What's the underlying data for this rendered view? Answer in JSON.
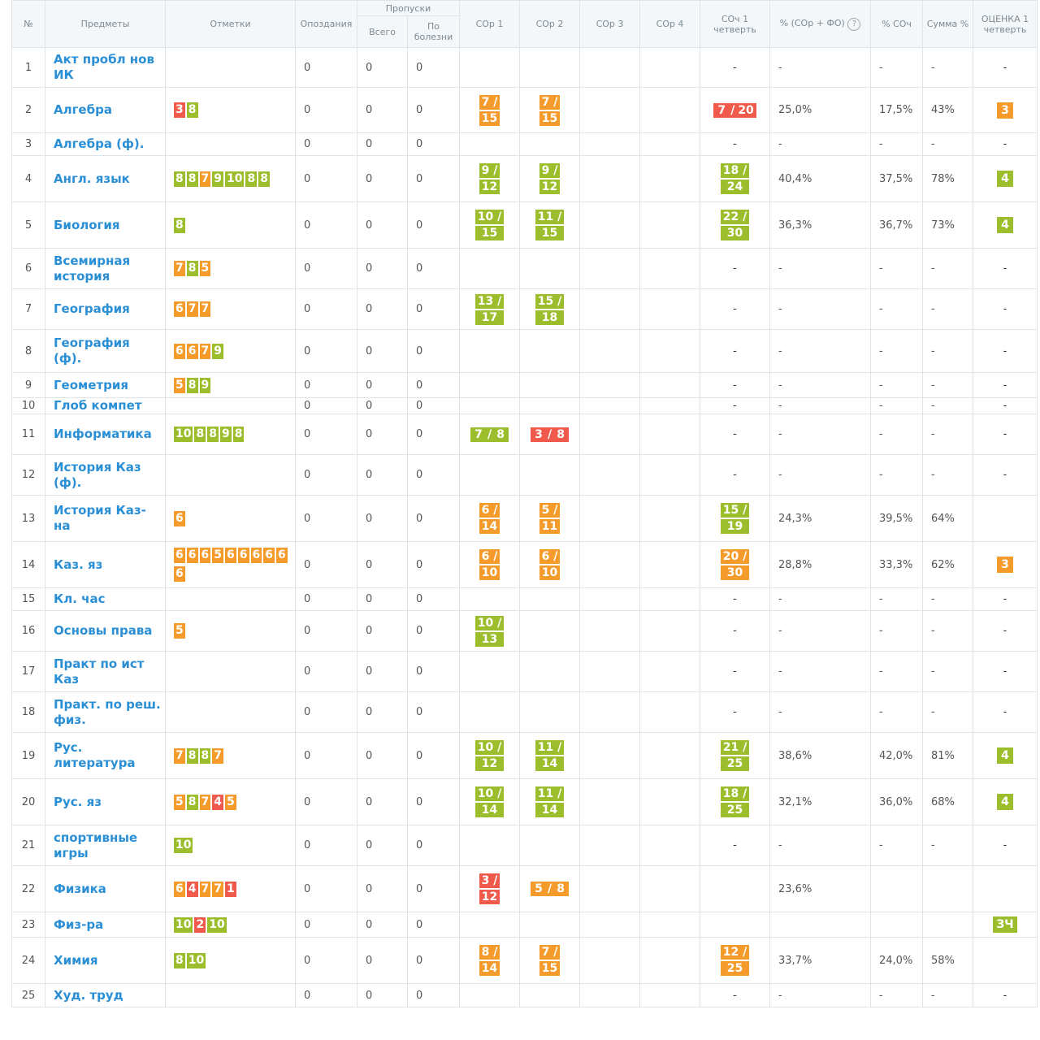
{
  "headers": {
    "num": "№",
    "subject": "Предметы",
    "marks": "Отметки",
    "late": "Опоздания",
    "absences": "Пропуски",
    "abs_total": "Всего",
    "abs_sick": "По болезни",
    "sor1": "СОр 1",
    "sor2": "СОр 2",
    "sor3": "СОр 3",
    "sor4": "СОр 4",
    "soch": "СОч 1 четверть",
    "pct_sor_fo": "% (СОр + ФО)",
    "pct_soch": "% СОч",
    "sum_pct": "Сумма %",
    "grade": "ОЦЕНКА 1 четверть"
  },
  "icons": {
    "help": "question-circle-icon"
  },
  "colors": {
    "green": "#9dbe2c",
    "orange": "#f49b2b",
    "red": "#ef5a4d",
    "link": "#2b8fd6"
  },
  "rows": [
    {
      "num": "1",
      "subject": "Акт пробл нов ИК",
      "marks": [],
      "late": "0",
      "total": "0",
      "sick": "0",
      "sor1": null,
      "sor2": null,
      "soch": "-",
      "pct_sor_fo": "-",
      "pct_soch": "-",
      "sum": "-",
      "grade": "-"
    },
    {
      "num": "2",
      "subject": "Алгебра",
      "marks": [
        {
          "v": "3",
          "c": "red"
        },
        {
          "v": "8",
          "c": "green"
        }
      ],
      "late": "0",
      "total": "0",
      "sick": "0",
      "sor1": {
        "a": "7",
        "b": "15",
        "c": "orange"
      },
      "sor2": {
        "a": "7",
        "b": "15",
        "c": "orange"
      },
      "soch": {
        "a": "7",
        "b": "20",
        "c": "red",
        "inline": true
      },
      "pct_sor_fo": "25,0%",
      "pct_soch": "17,5%",
      "sum": "43%",
      "grade": {
        "v": "3",
        "c": "orange"
      }
    },
    {
      "num": "3",
      "subject": "Алгебра (ф).",
      "marks": [],
      "late": "0",
      "total": "0",
      "sick": "0",
      "sor1": null,
      "sor2": null,
      "soch": "-",
      "pct_sor_fo": "-",
      "pct_soch": "-",
      "sum": "-",
      "grade": "-"
    },
    {
      "num": "4",
      "subject": "Англ. язык",
      "marks": [
        {
          "v": "8",
          "c": "green"
        },
        {
          "v": "8",
          "c": "green"
        },
        {
          "v": "7",
          "c": "orange"
        },
        {
          "v": "9",
          "c": "green"
        },
        {
          "v": "10",
          "c": "green"
        },
        {
          "v": "8",
          "c": "green"
        },
        {
          "v": "8",
          "c": "green"
        }
      ],
      "late": "0",
      "total": "0",
      "sick": "0",
      "sor1": {
        "a": "9",
        "b": "12",
        "c": "green"
      },
      "sor2": {
        "a": "9",
        "b": "12",
        "c": "green"
      },
      "soch": {
        "a": "18",
        "b": "24",
        "c": "green"
      },
      "pct_sor_fo": "40,4%",
      "pct_soch": "37,5%",
      "sum": "78%",
      "grade": {
        "v": "4",
        "c": "green"
      }
    },
    {
      "num": "5",
      "subject": "Биология",
      "marks": [
        {
          "v": "8",
          "c": "green"
        }
      ],
      "late": "0",
      "total": "0",
      "sick": "0",
      "sor1": {
        "a": "10",
        "b": "15",
        "c": "green"
      },
      "sor2": {
        "a": "11",
        "b": "15",
        "c": "green"
      },
      "soch": {
        "a": "22",
        "b": "30",
        "c": "green"
      },
      "pct_sor_fo": "36,3%",
      "pct_soch": "36,7%",
      "sum": "73%",
      "grade": {
        "v": "4",
        "c": "green"
      }
    },
    {
      "num": "6",
      "subject": "Всемирная история",
      "marks": [
        {
          "v": "7",
          "c": "orange"
        },
        {
          "v": "8",
          "c": "green"
        },
        {
          "v": "5",
          "c": "orange"
        }
      ],
      "late": "0",
      "total": "0",
      "sick": "0",
      "sor1": null,
      "sor2": null,
      "soch": "-",
      "pct_sor_fo": "-",
      "pct_soch": "-",
      "sum": "-",
      "grade": "-"
    },
    {
      "num": "7",
      "subject": "География",
      "marks": [
        {
          "v": "6",
          "c": "orange"
        },
        {
          "v": "7",
          "c": "orange"
        },
        {
          "v": "7",
          "c": "orange"
        }
      ],
      "late": "0",
      "total": "0",
      "sick": "0",
      "sor1": {
        "a": "13",
        "b": "17",
        "c": "green"
      },
      "sor2": {
        "a": "15",
        "b": "18",
        "c": "green"
      },
      "soch": "-",
      "pct_sor_fo": "-",
      "pct_soch": "-",
      "sum": "-",
      "grade": "-"
    },
    {
      "num": "8",
      "subject": "География (ф).",
      "marks": [
        {
          "v": "6",
          "c": "orange"
        },
        {
          "v": "6",
          "c": "orange"
        },
        {
          "v": "7",
          "c": "orange"
        },
        {
          "v": "9",
          "c": "green"
        }
      ],
      "late": "0",
      "total": "0",
      "sick": "0",
      "sor1": null,
      "sor2": null,
      "soch": "-",
      "pct_sor_fo": "-",
      "pct_soch": "-",
      "sum": "-",
      "grade": "-"
    },
    {
      "num": "9",
      "subject": "Геометрия",
      "marks": [
        {
          "v": "5",
          "c": "orange"
        },
        {
          "v": "8",
          "c": "green"
        },
        {
          "v": "9",
          "c": "green"
        }
      ],
      "late": "0",
      "total": "0",
      "sick": "0",
      "sor1": null,
      "sor2": null,
      "soch": "-",
      "pct_sor_fo": "-",
      "pct_soch": "-",
      "sum": "-",
      "grade": "-"
    },
    {
      "num": "10",
      "subject": "Глоб компет",
      "marks": [],
      "late": "0",
      "total": "0",
      "sick": "0",
      "sor1": null,
      "sor2": null,
      "soch": "-",
      "pct_sor_fo": "-",
      "pct_soch": "-",
      "sum": "-",
      "grade": "-"
    },
    {
      "num": "11",
      "subject": "Информатика",
      "marks": [
        {
          "v": "10",
          "c": "green"
        },
        {
          "v": "8",
          "c": "green"
        },
        {
          "v": "8",
          "c": "green"
        },
        {
          "v": "9",
          "c": "green"
        },
        {
          "v": "8",
          "c": "green"
        }
      ],
      "late": "0",
      "total": "0",
      "sick": "0",
      "sor1": {
        "a": "7",
        "b": "8",
        "c": "green",
        "inline": true
      },
      "sor2": {
        "a": "3",
        "b": "8",
        "c": "red",
        "inline": true
      },
      "soch": "-",
      "pct_sor_fo": "-",
      "pct_soch": "-",
      "sum": "-",
      "grade": "-"
    },
    {
      "num": "12",
      "subject": "История Каз (ф).",
      "marks": [],
      "late": "0",
      "total": "0",
      "sick": "0",
      "sor1": null,
      "sor2": null,
      "soch": "-",
      "pct_sor_fo": "-",
      "pct_soch": "-",
      "sum": "-",
      "grade": "-"
    },
    {
      "num": "13",
      "subject": "История Каз-на",
      "marks": [
        {
          "v": "6",
          "c": "orange"
        }
      ],
      "late": "0",
      "total": "0",
      "sick": "0",
      "sor1": {
        "a": "6",
        "b": "14",
        "c": "orange"
      },
      "sor2": {
        "a": "5",
        "b": "11",
        "c": "orange"
      },
      "soch": {
        "a": "15",
        "b": "19",
        "c": "green"
      },
      "pct_sor_fo": "24,3%",
      "pct_soch": "39,5%",
      "sum": "64%",
      "grade": ""
    },
    {
      "num": "14",
      "subject": "Каз. яз",
      "marks": [
        {
          "v": "6",
          "c": "orange"
        },
        {
          "v": "6",
          "c": "orange"
        },
        {
          "v": "6",
          "c": "orange"
        },
        {
          "v": "5",
          "c": "orange"
        },
        {
          "v": "6",
          "c": "orange"
        },
        {
          "v": "6",
          "c": "orange"
        },
        {
          "v": "6",
          "c": "orange"
        },
        {
          "v": "6",
          "c": "orange"
        },
        {
          "v": "6",
          "c": "orange"
        },
        {
          "v": "6",
          "c": "orange"
        }
      ],
      "late": "0",
      "total": "0",
      "sick": "0",
      "sor1": {
        "a": "6",
        "b": "10",
        "c": "orange"
      },
      "sor2": {
        "a": "6",
        "b": "10",
        "c": "orange"
      },
      "soch": {
        "a": "20",
        "b": "30",
        "c": "orange"
      },
      "pct_sor_fo": "28,8%",
      "pct_soch": "33,3%",
      "sum": "62%",
      "grade": {
        "v": "3",
        "c": "orange"
      }
    },
    {
      "num": "15",
      "subject": "Кл. час",
      "marks": [],
      "late": "0",
      "total": "0",
      "sick": "0",
      "sor1": null,
      "sor2": null,
      "soch": "-",
      "pct_sor_fo": "-",
      "pct_soch": "-",
      "sum": "-",
      "grade": "-"
    },
    {
      "num": "16",
      "subject": "Основы права",
      "marks": [
        {
          "v": "5",
          "c": "orange"
        }
      ],
      "late": "0",
      "total": "0",
      "sick": "0",
      "sor1": {
        "a": "10",
        "b": "13",
        "c": "green"
      },
      "sor2": null,
      "soch": "-",
      "pct_sor_fo": "-",
      "pct_soch": "-",
      "sum": "-",
      "grade": "-"
    },
    {
      "num": "17",
      "subject": "Практ по ист Каз",
      "marks": [],
      "late": "0",
      "total": "0",
      "sick": "0",
      "sor1": null,
      "sor2": null,
      "soch": "-",
      "pct_sor_fo": "-",
      "pct_soch": "-",
      "sum": "-",
      "grade": "-"
    },
    {
      "num": "18",
      "subject": "Практ. по реш. физ.",
      "marks": [],
      "late": "0",
      "total": "0",
      "sick": "0",
      "sor1": null,
      "sor2": null,
      "soch": "-",
      "pct_sor_fo": "-",
      "pct_soch": "-",
      "sum": "-",
      "grade": "-"
    },
    {
      "num": "19",
      "subject": "Рус. литература",
      "marks": [
        {
          "v": "7",
          "c": "orange"
        },
        {
          "v": "8",
          "c": "green"
        },
        {
          "v": "8",
          "c": "green"
        },
        {
          "v": "7",
          "c": "orange"
        }
      ],
      "late": "0",
      "total": "0",
      "sick": "0",
      "sor1": {
        "a": "10",
        "b": "12",
        "c": "green"
      },
      "sor2": {
        "a": "11",
        "b": "14",
        "c": "green"
      },
      "soch": {
        "a": "21",
        "b": "25",
        "c": "green"
      },
      "pct_sor_fo": "38,6%",
      "pct_soch": "42,0%",
      "sum": "81%",
      "grade": {
        "v": "4",
        "c": "green"
      }
    },
    {
      "num": "20",
      "subject": "Рус. яз",
      "marks": [
        {
          "v": "5",
          "c": "orange"
        },
        {
          "v": "8",
          "c": "green"
        },
        {
          "v": "7",
          "c": "orange"
        },
        {
          "v": "4",
          "c": "red"
        },
        {
          "v": "5",
          "c": "orange"
        }
      ],
      "late": "0",
      "total": "0",
      "sick": "0",
      "sor1": {
        "a": "10",
        "b": "14",
        "c": "green"
      },
      "sor2": {
        "a": "11",
        "b": "14",
        "c": "green"
      },
      "soch": {
        "a": "18",
        "b": "25",
        "c": "green"
      },
      "pct_sor_fo": "32,1%",
      "pct_soch": "36,0%",
      "sum": "68%",
      "grade": {
        "v": "4",
        "c": "green"
      }
    },
    {
      "num": "21",
      "subject": "спортивные игры",
      "marks": [
        {
          "v": "10",
          "c": "green"
        }
      ],
      "late": "0",
      "total": "0",
      "sick": "0",
      "sor1": null,
      "sor2": null,
      "soch": "-",
      "pct_sor_fo": "-",
      "pct_soch": "-",
      "sum": "-",
      "grade": "-"
    },
    {
      "num": "22",
      "subject": "Физика",
      "marks": [
        {
          "v": "6",
          "c": "orange"
        },
        {
          "v": "4",
          "c": "red"
        },
        {
          "v": "7",
          "c": "orange"
        },
        {
          "v": "7",
          "c": "orange"
        },
        {
          "v": "1",
          "c": "red"
        }
      ],
      "late": "0",
      "total": "0",
      "sick": "0",
      "sor1": {
        "a": "3",
        "b": "12",
        "c": "red"
      },
      "sor2": {
        "a": "5",
        "b": "8",
        "c": "orange",
        "inline": true
      },
      "soch": "",
      "pct_sor_fo": "23,6%",
      "pct_soch": "",
      "sum": "",
      "grade": ""
    },
    {
      "num": "23",
      "subject": "Физ-ра",
      "marks": [
        {
          "v": "10",
          "c": "green"
        },
        {
          "v": "2",
          "c": "red"
        },
        {
          "v": "10",
          "c": "green"
        }
      ],
      "late": "0",
      "total": "0",
      "sick": "0",
      "sor1": null,
      "sor2": null,
      "soch": "",
      "pct_sor_fo": "",
      "pct_soch": "",
      "sum": "",
      "grade": {
        "v": "ЗЧ",
        "c": "green"
      }
    },
    {
      "num": "24",
      "subject": "Химия",
      "marks": [
        {
          "v": "8",
          "c": "green"
        },
        {
          "v": "10",
          "c": "green"
        }
      ],
      "late": "0",
      "total": "0",
      "sick": "0",
      "sor1": {
        "a": "8",
        "b": "14",
        "c": "orange"
      },
      "sor2": {
        "a": "7",
        "b": "15",
        "c": "orange"
      },
      "soch": {
        "a": "12",
        "b": "25",
        "c": "orange"
      },
      "pct_sor_fo": "33,7%",
      "pct_soch": "24,0%",
      "sum": "58%",
      "grade": ""
    },
    {
      "num": "25",
      "subject": "Худ. труд",
      "marks": [],
      "late": "0",
      "total": "0",
      "sick": "0",
      "sor1": null,
      "sor2": null,
      "soch": "-",
      "pct_sor_fo": "-",
      "pct_soch": "-",
      "sum": "-",
      "grade": "-"
    }
  ]
}
